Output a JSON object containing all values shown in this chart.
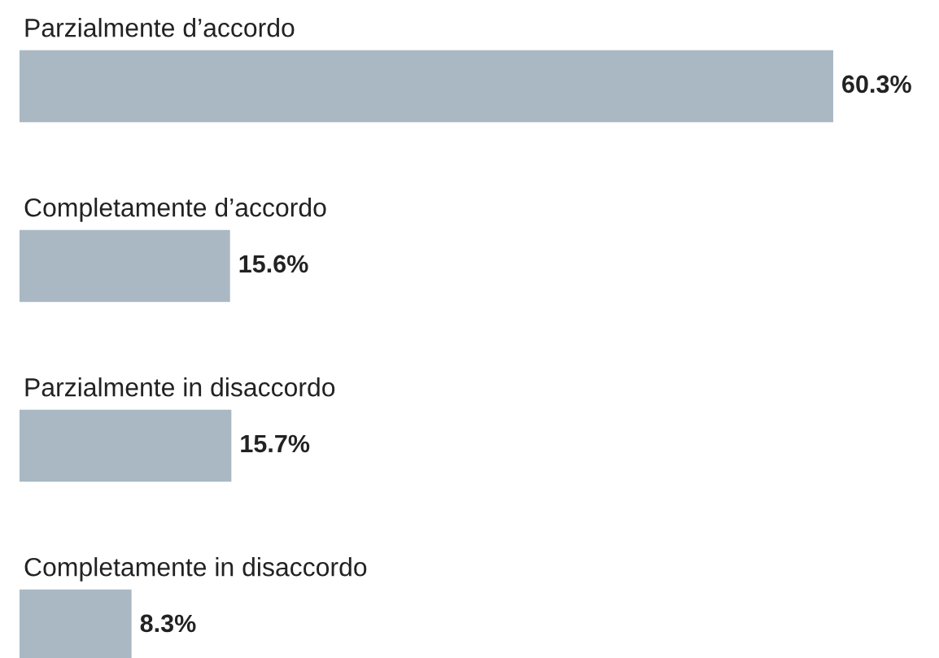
{
  "chart_data": {
    "type": "bar",
    "orientation": "horizontal",
    "categories": [
      "Parzialmente d’accordo",
      "Completamente d’accordo",
      "Parzialmente in disaccordo",
      "Completamente in disaccordo"
    ],
    "values": [
      60.3,
      15.6,
      15.7,
      8.3
    ],
    "value_labels": [
      "60.3%",
      "15.6%",
      "15.7%",
      "8.3%"
    ],
    "color": "#a9b8c3"
  }
}
